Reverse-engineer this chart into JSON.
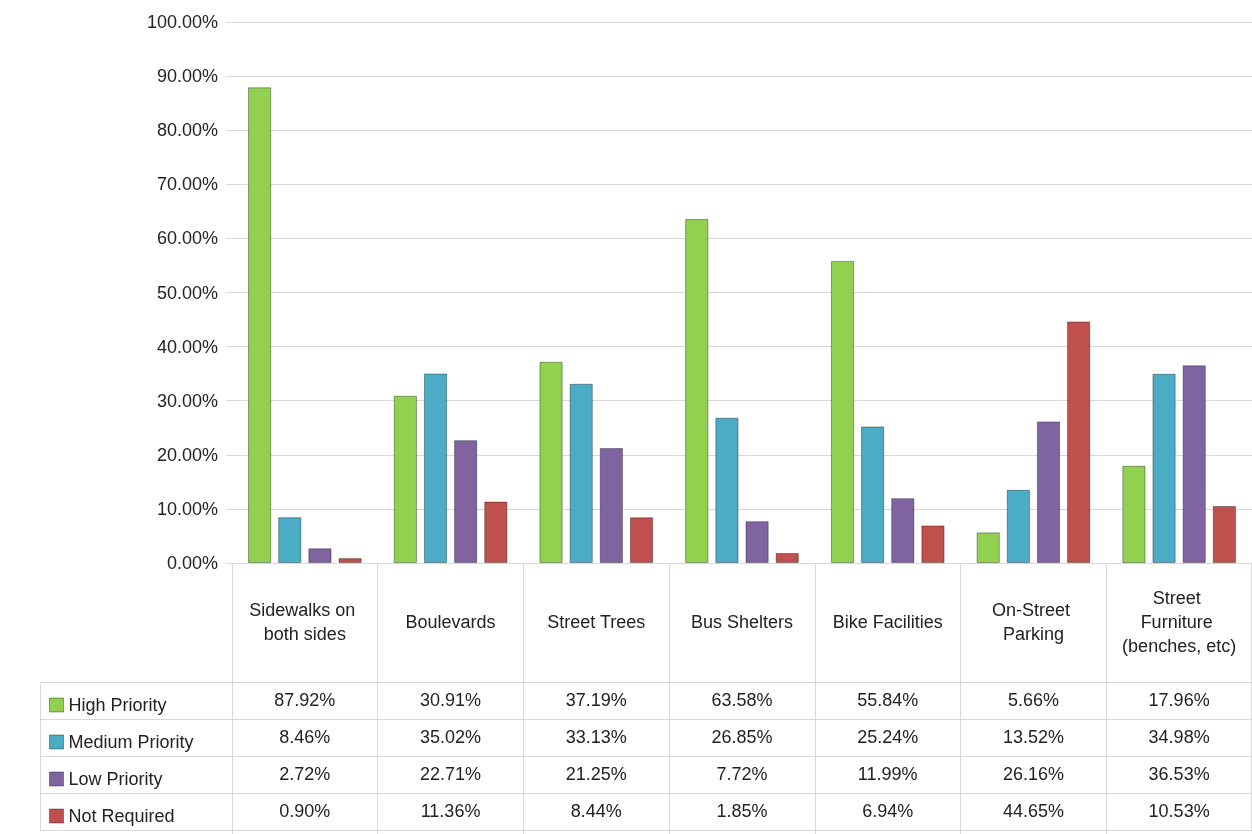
{
  "chart_data": {
    "type": "bar",
    "categories": [
      "Sidewalks on both sides",
      "Boulevards",
      "Street Trees",
      "Bus Shelters",
      "Bike Facilities",
      "On-Street Parking",
      "Street Furniture (benches, etc)"
    ],
    "series": [
      {
        "name": "High Priority",
        "color": "#92d050",
        "values": [
          87.92,
          30.91,
          37.19,
          63.58,
          55.84,
          5.66,
          17.96
        ],
        "value_labels": [
          "87.92%",
          "30.91%",
          "37.19%",
          "63.58%",
          "55.84%",
          "5.66%",
          "17.96%"
        ]
      },
      {
        "name": "Medium Priority",
        "color": "#4bacc6",
        "values": [
          8.46,
          35.02,
          33.13,
          26.85,
          25.24,
          13.52,
          34.98
        ],
        "value_labels": [
          "8.46%",
          "35.02%",
          "33.13%",
          "26.85%",
          "25.24%",
          "13.52%",
          "34.98%"
        ]
      },
      {
        "name": "Low Priority",
        "color": "#8064a2",
        "values": [
          2.72,
          22.71,
          21.25,
          7.72,
          11.99,
          26.16,
          36.53
        ],
        "value_labels": [
          "2.72%",
          "22.71%",
          "21.25%",
          "7.72%",
          "11.99%",
          "26.16%",
          "36.53%"
        ]
      },
      {
        "name": "Not Required",
        "color": "#c0504d",
        "values": [
          0.9,
          11.36,
          8.44,
          1.85,
          6.94,
          44.65,
          10.53
        ],
        "value_labels": [
          "0.90%",
          "11.36%",
          "8.44%",
          "1.85%",
          "6.94%",
          "44.65%",
          "10.53%"
        ]
      }
    ],
    "ylim": [
      0,
      100
    ],
    "yticks": [
      {
        "value": 0,
        "label": "0.00%"
      },
      {
        "value": 10,
        "label": "10.00%"
      },
      {
        "value": 20,
        "label": "20.00%"
      },
      {
        "value": 30,
        "label": "30.00%"
      },
      {
        "value": 40,
        "label": "40.00%"
      },
      {
        "value": 50,
        "label": "50.00%"
      },
      {
        "value": 60,
        "label": "60.00%"
      },
      {
        "value": 70,
        "label": "70.00%"
      },
      {
        "value": 80,
        "label": "80.00%"
      },
      {
        "value": 90,
        "label": "90.00%"
      },
      {
        "value": 100,
        "label": "100.00%"
      }
    ],
    "grid": "y",
    "legend": "bottom left"
  }
}
